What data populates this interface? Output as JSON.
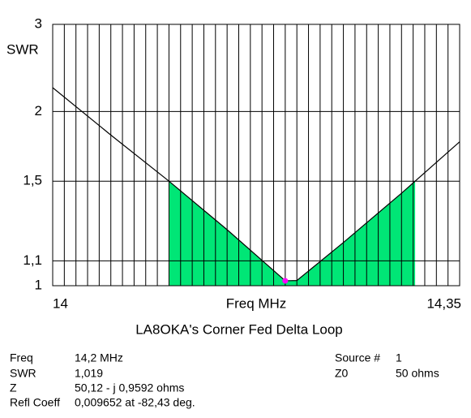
{
  "chart_data": {
    "type": "line",
    "title": "LA8OKA's Corner Fed Delta Loop",
    "x_label": "Freq MHz",
    "y_label": "SWR",
    "x": [
      14,
      14.05,
      14.1,
      14.15,
      14.2,
      14.21,
      14.25,
      14.3,
      14.35
    ],
    "values": [
      2.22,
      1.81,
      1.5,
      1.24,
      1.019,
      1.02,
      1.18,
      1.43,
      1.76
    ],
    "color": "#000000",
    "fill_below": 1.5,
    "fill_color": "#00e676",
    "y_scale": "reflection",
    "xlim": [
      14,
      14.35
    ],
    "ylim": [
      1,
      3
    ],
    "xticks": [
      14,
      {
        "value": 14.35,
        "label": "14,35"
      }
    ],
    "yticks": [
      1,
      {
        "value": 1.1,
        "label": "1,1"
      },
      {
        "value": 1.5,
        "label": "1,5"
      },
      2,
      3
    ],
    "x_grid_step": 0.01,
    "grid": true,
    "marker": {
      "x": 14.2,
      "value": 1.019,
      "color": "#ff00ff"
    }
  },
  "info": {
    "left": [
      [
        "Freq",
        "14,2 MHz"
      ],
      [
        "SWR",
        "1,019"
      ],
      [
        "Z",
        "50,12 - j 0,9592 ohms"
      ],
      [
        "Refl Coeff",
        "0,009652 at -82,43 deg."
      ]
    ],
    "right": [
      [
        "Source #",
        "1"
      ],
      [
        "Z0",
        "50 ohms"
      ]
    ]
  }
}
